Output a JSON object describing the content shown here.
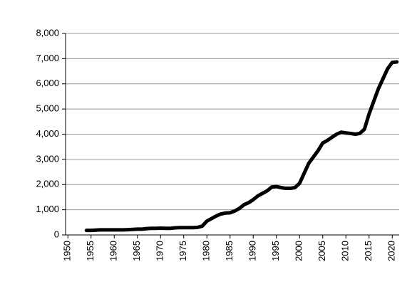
{
  "chart_data": {
    "type": "line",
    "x": [
      1954,
      1955,
      1956,
      1957,
      1958,
      1959,
      1960,
      1961,
      1962,
      1963,
      1964,
      1965,
      1966,
      1967,
      1968,
      1969,
      1970,
      1971,
      1972,
      1973,
      1974,
      1975,
      1976,
      1977,
      1978,
      1979,
      1980,
      1981,
      1982,
      1983,
      1984,
      1985,
      1986,
      1987,
      1988,
      1989,
      1990,
      1991,
      1992,
      1993,
      1994,
      1995,
      1996,
      1997,
      1998,
      1999,
      2000,
      2001,
      2002,
      2003,
      2004,
      2005,
      2006,
      2007,
      2008,
      2009,
      2010,
      2011,
      2012,
      2013,
      2014,
      2015,
      2016,
      2017,
      2018,
      2019,
      2020,
      2021
    ],
    "values": [
      180,
      180,
      190,
      200,
      200,
      200,
      200,
      200,
      200,
      210,
      220,
      230,
      230,
      250,
      260,
      260,
      270,
      260,
      260,
      280,
      290,
      290,
      290,
      290,
      300,
      350,
      550,
      650,
      750,
      830,
      870,
      880,
      950,
      1050,
      1200,
      1280,
      1400,
      1550,
      1650,
      1750,
      1900,
      1920,
      1880,
      1850,
      1850,
      1880,
      2050,
      2450,
      2850,
      3100,
      3350,
      3650,
      3750,
      3880,
      4000,
      4080,
      4050,
      4030,
      4000,
      4030,
      4200,
      4800,
      5300,
      5800,
      6200,
      6600,
      6850,
      6870
    ],
    "color": "#000000",
    "xlim": [
      1949.5,
      2021.5
    ],
    "xticks": [
      1950,
      1955,
      1960,
      1965,
      1970,
      1975,
      1980,
      1985,
      1990,
      1995,
      2000,
      2005,
      2010,
      2015,
      2020
    ],
    "ylim": [
      0,
      8000
    ],
    "yticks": [
      0,
      {
        "value": 1000,
        "label": "1,000"
      },
      {
        "value": 2000,
        "label": "2,000"
      },
      {
        "value": 3000,
        "label": "3,000"
      },
      {
        "value": 4000,
        "label": "4,000"
      },
      {
        "value": 5000,
        "label": "5,000"
      },
      {
        "value": 6000,
        "label": "6,000"
      },
      {
        "value": 7000,
        "label": "7,000"
      },
      {
        "value": 8000,
        "label": "8,000"
      }
    ],
    "grid": true
  }
}
